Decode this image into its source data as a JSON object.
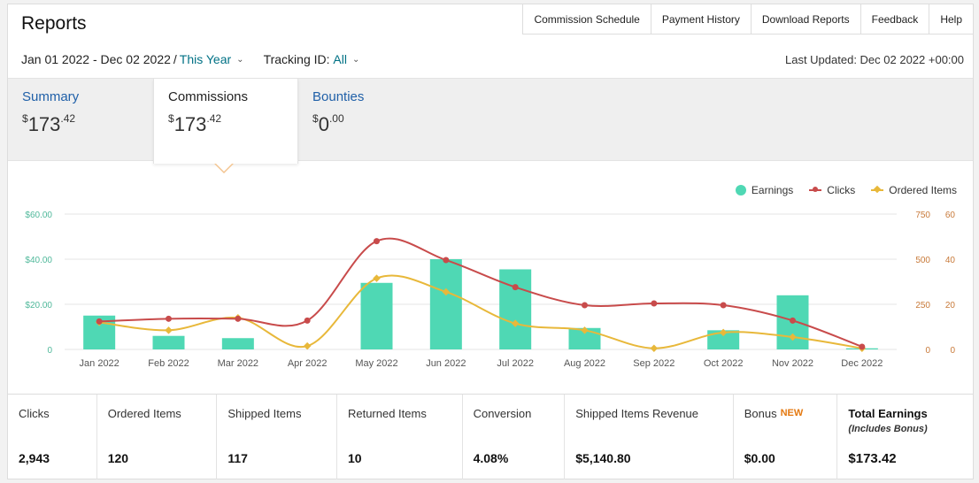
{
  "header": {
    "title": "Reports",
    "nav": [
      "Commission Schedule",
      "Payment History",
      "Download Reports",
      "Feedback",
      "Help"
    ]
  },
  "filters": {
    "date_range": "Jan 01 2022 - Dec 02 2022",
    "date_sep": "/",
    "date_preset": "This Year",
    "tracking_label": "Tracking ID:",
    "tracking_value": "All",
    "last_updated": "Last Updated: Dec 02 2022 +00:00"
  },
  "tabs": [
    {
      "label": "Summary",
      "dollar": "$",
      "whole": "173",
      "cents": ".42"
    },
    {
      "label": "Commissions",
      "dollar": "$",
      "whole": "173",
      "cents": ".42"
    },
    {
      "label": "Bounties",
      "dollar": "$",
      "whole": "0",
      "cents": ".00"
    }
  ],
  "colors": {
    "earnings": "#4fd8b4",
    "clicks": "#c84b4b",
    "ordered": "#e8b83a",
    "grid": "#e6e6e6",
    "left_axis": "#4fb89a",
    "mid_axis": "#c87a3a",
    "right_axis": "#c87a3a"
  },
  "chart_data": {
    "type": "bar",
    "categories": [
      "Jan 2022",
      "Feb 2022",
      "Mar 2022",
      "Apr 2022",
      "May 2022",
      "Jun 2022",
      "Jul 2022",
      "Aug 2022",
      "Sep 2022",
      "Oct 2022",
      "Nov 2022",
      "Dec 2022"
    ],
    "series": [
      {
        "name": "Earnings",
        "type": "bar",
        "axis": "left",
        "values": [
          15,
          6,
          5,
          0,
          29.5,
          40,
          35.5,
          9.5,
          0,
          8.5,
          24,
          0.5
        ]
      },
      {
        "name": "Clicks",
        "type": "line",
        "axis": "middle",
        "values": [
          155,
          170,
          170,
          160,
          600,
          495,
          345,
          245,
          255,
          245,
          160,
          15
        ]
      },
      {
        "name": "Ordered Items",
        "type": "line",
        "axis": "right",
        "values": [
          12,
          8.5,
          14,
          1.5,
          31.5,
          25.5,
          11.5,
          8.5,
          0.5,
          7.5,
          5.5,
          0.5
        ]
      }
    ],
    "left_axis": {
      "ticks": [
        "0",
        "$20.00",
        "$40.00",
        "$60.00"
      ],
      "ylim": [
        0,
        60
      ]
    },
    "middle_axis": {
      "ticks": [
        "0",
        "250",
        "500",
        "750"
      ],
      "ylim": [
        0,
        750
      ]
    },
    "right_axis": {
      "ticks": [
        "0",
        "20",
        "40",
        "60"
      ],
      "ylim": [
        0,
        60
      ]
    },
    "legend": [
      "Earnings",
      "Clicks",
      "Ordered Items"
    ],
    "legend_position": "top-right",
    "grid": true
  },
  "metrics": [
    {
      "label": "Clicks",
      "value": "2,943"
    },
    {
      "label": "Ordered Items",
      "value": "120"
    },
    {
      "label": "Shipped Items",
      "value": "117"
    },
    {
      "label": "Returned Items",
      "value": "10"
    },
    {
      "label": "Conversion",
      "value": "4.08%"
    },
    {
      "label": "Shipped Items Revenue",
      "value": "$5,140.80"
    },
    {
      "label": "Bonus",
      "badge": "NEW",
      "value": "$0.00"
    },
    {
      "label": "Total Earnings",
      "sublabel": "(Includes Bonus)",
      "value": "$173.42"
    }
  ]
}
